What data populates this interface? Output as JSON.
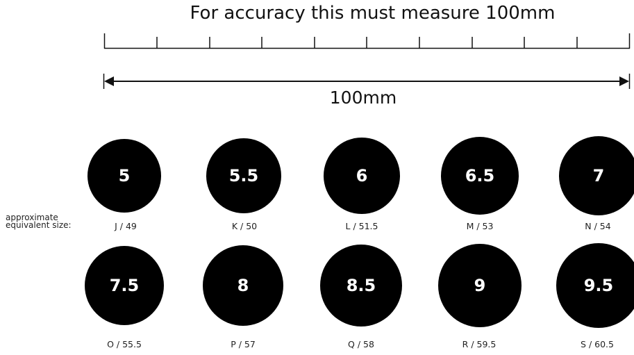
{
  "header": {
    "title": "For accuracy this must measure 100mm"
  },
  "ruler": {
    "label": "100mm"
  },
  "approx_label": {
    "line1": "approximate",
    "line2": "equivalent size:"
  },
  "rows": [
    {
      "rings": [
        {
          "size": "5",
          "equivalent": "J / 49"
        },
        {
          "size": "5.5",
          "equivalent": "K / 50"
        },
        {
          "size": "6",
          "equivalent": "L / 51.5"
        },
        {
          "size": "6.5",
          "equivalent": "M / 53"
        },
        {
          "size": "7",
          "equivalent": "N / 54"
        }
      ]
    },
    {
      "rings": [
        {
          "size": "7.5",
          "equivalent": "O / 55.5"
        },
        {
          "size": "8",
          "equivalent": "P / 57"
        },
        {
          "size": "8.5",
          "equivalent": "Q / 58"
        },
        {
          "size": "9",
          "equivalent": "R / 59.5"
        },
        {
          "size": "9.5",
          "equivalent": "S / 60.5"
        }
      ]
    }
  ]
}
